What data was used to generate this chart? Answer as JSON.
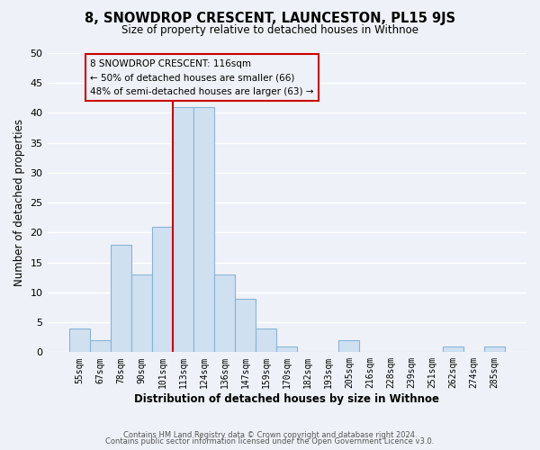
{
  "title": "8, SNOWDROP CRESCENT, LAUNCESTON, PL15 9JS",
  "subtitle": "Size of property relative to detached houses in Withnoe",
  "xlabel": "Distribution of detached houses by size in Withnoe",
  "ylabel": "Number of detached properties",
  "bin_labels": [
    "55sqm",
    "67sqm",
    "78sqm",
    "90sqm",
    "101sqm",
    "113sqm",
    "124sqm",
    "136sqm",
    "147sqm",
    "159sqm",
    "170sqm",
    "182sqm",
    "193sqm",
    "205sqm",
    "216sqm",
    "228sqm",
    "239sqm",
    "251sqm",
    "262sqm",
    "274sqm",
    "285sqm"
  ],
  "bar_heights": [
    4,
    2,
    18,
    13,
    21,
    41,
    41,
    13,
    9,
    4,
    1,
    0,
    0,
    2,
    0,
    0,
    0,
    0,
    1,
    0,
    1
  ],
  "bar_color": "#cfe0f0",
  "bar_edge_color": "#8ab4d4",
  "vline_color": "#cc0000",
  "ylim": [
    0,
    50
  ],
  "yticks": [
    0,
    5,
    10,
    15,
    20,
    25,
    30,
    35,
    40,
    45,
    50
  ],
  "annotation_title": "8 SNOWDROP CRESCENT: 116sqm",
  "annotation_line1": "← 50% of detached houses are smaller (66)",
  "annotation_line2": "48% of semi-detached houses are larger (63) →",
  "annotation_box_edge": "#cc0000",
  "footer_line1": "Contains HM Land Registry data © Crown copyright and database right 2024.",
  "footer_line2": "Contains public sector information licensed under the Open Government Licence v3.0.",
  "background_color": "#eef2f8",
  "grid_color": "#ffffff"
}
